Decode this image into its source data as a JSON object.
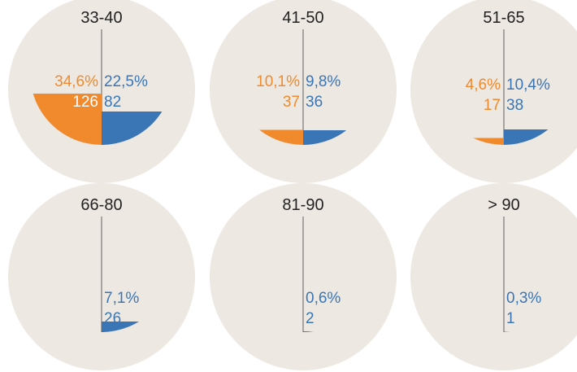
{
  "chart_data": {
    "type": "bowl-grid",
    "colors": {
      "left": "#f08a2c",
      "right": "#3a76b6"
    },
    "panels": [
      {
        "label": "33-40",
        "left": {
          "percent": "34,6%",
          "count": 126
        },
        "right": {
          "percent": "22,5%",
          "count": 82
        }
      },
      {
        "label": "41-50",
        "left": {
          "percent": "10,1%",
          "count": 37
        },
        "right": {
          "percent": "9,8%",
          "count": 36
        }
      },
      {
        "label": "51-65",
        "left": {
          "percent": "4,6%",
          "count": 17
        },
        "right": {
          "percent": "10,4%",
          "count": 38
        }
      },
      {
        "label": "66-80",
        "right": {
          "percent": "7,1%",
          "count": 26
        }
      },
      {
        "label": "81-90",
        "right": {
          "percent": "0,6%",
          "count": 2
        }
      },
      {
        "label": "> 90",
        "right": {
          "percent": "0,3%",
          "count": 1
        }
      }
    ]
  }
}
